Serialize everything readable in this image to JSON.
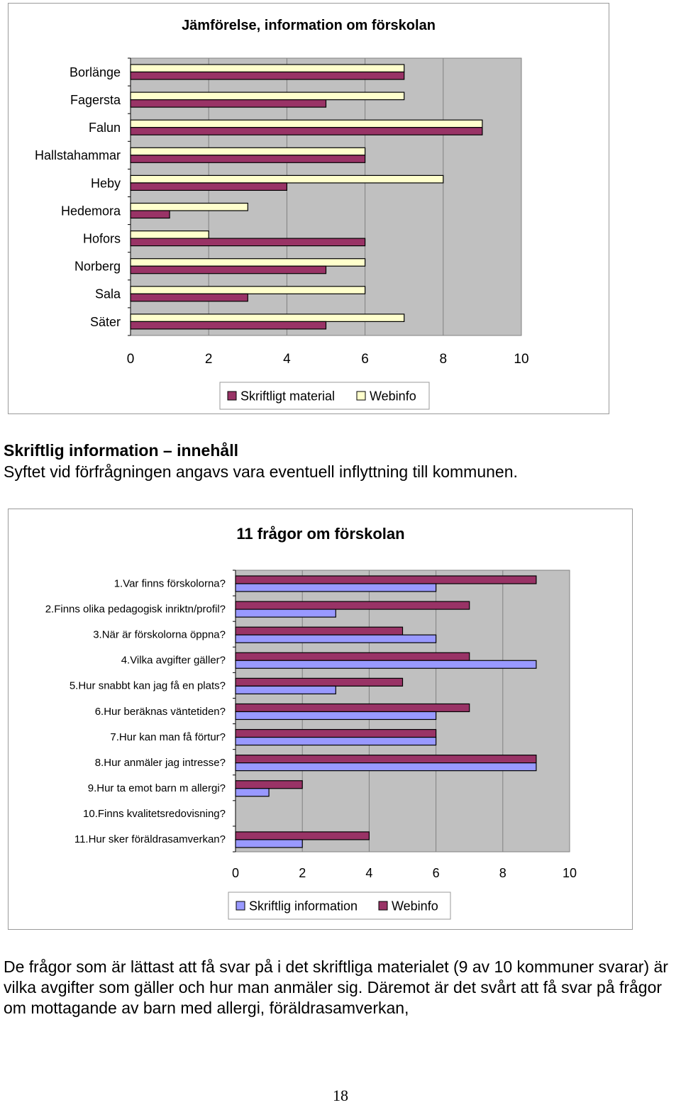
{
  "colors": {
    "plot_bg": "#c0c0c0",
    "maroon": "#993366",
    "cream": "#ffffcc",
    "periwinkle": "#9999ff",
    "gridline": "#808080"
  },
  "chart_data": [
    {
      "type": "bar",
      "orientation": "horizontal",
      "title": "Jämförelse, information om förskolan",
      "categories": [
        "Borlänge",
        "Fagersta",
        "Falun",
        "Hallstahammar",
        "Heby",
        "Hedemora",
        "Hofors",
        "Norberg",
        "Sala",
        "Säter"
      ],
      "series": [
        {
          "name": "Skriftligt material",
          "color": "#993366",
          "values": [
            7,
            5,
            9,
            6,
            4,
            1,
            6,
            5,
            3,
            5
          ]
        },
        {
          "name": "Webinfo",
          "color": "#ffffcc",
          "values": [
            7,
            7,
            9,
            6,
            8,
            3,
            2,
            6,
            6,
            7
          ]
        }
      ],
      "bar_order": [
        "Webinfo",
        "Skriftligt material"
      ],
      "xlim": [
        0,
        10
      ],
      "xticks": [
        "0",
        "2",
        "4",
        "6",
        "8",
        "10"
      ],
      "legend_position": "bottom",
      "grid": true
    },
    {
      "type": "bar",
      "orientation": "horizontal",
      "title": "11 frågor om förskolan",
      "categories": [
        "1.Var finns förskolorna?",
        "2.Finns olika pedagogisk inriktn/profil?",
        "3.När är förskolorna öppna?",
        "4.Vilka avgifter gäller?",
        "5.Hur snabbt kan jag få en plats?",
        "6.Hur beräknas väntetiden?",
        "7.Hur kan man få förtur?",
        "8.Hur anmäler jag intresse?",
        "9.Hur ta emot barn m allergi?",
        "10.Finns kvalitetsredovisning?",
        "11.Hur sker föräldrasamverkan?"
      ],
      "series": [
        {
          "name": "Skriftlig information",
          "color": "#9999ff",
          "values": [
            6,
            3,
            6,
            9,
            3,
            6,
            6,
            9,
            1,
            0,
            2
          ]
        },
        {
          "name": "Webinfo",
          "color": "#993366",
          "values": [
            9,
            7,
            5,
            7,
            5,
            7,
            6,
            9,
            2,
            0,
            4
          ]
        }
      ],
      "bar_order": [
        "Webinfo",
        "Skriftlig information"
      ],
      "xlim": [
        0,
        10
      ],
      "xticks": [
        "0",
        "2",
        "4",
        "6",
        "8",
        "10"
      ],
      "legend_position": "bottom",
      "grid": true
    }
  ],
  "text": {
    "heading": "Skriftlig information – innehåll",
    "intro": "Syftet vid förfrågningen angavs vara eventuell inflyttning till kommunen.",
    "conclusion": "De frågor som är lättast att få svar på i det skriftliga materialet (9 av 10 kommuner svarar) är vilka avgifter som gäller och hur man anmäler sig. Däremot är det svårt att få svar på frågor om mottagande av barn med allergi, föräldrasamverkan,",
    "page_number": "18"
  }
}
